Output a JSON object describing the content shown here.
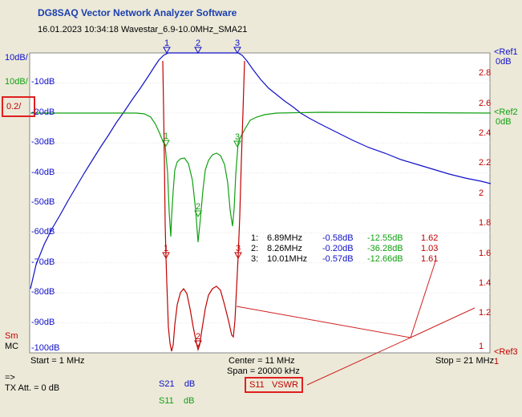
{
  "app_title": "DG8SAQ Vector Network Analyzer Software",
  "subtitle": "16.01.2023   10:34:18   Wavestar_6.9-10.0MHz_SMA21",
  "scales": {
    "blue_scale": "10dB/",
    "green_scale": "10dB/",
    "red_scale": "0.2/",
    "ref1": "<Ref1",
    "ref1_val": "0dB",
    "ref2": "<Ref2",
    "ref2_val": "0dB",
    "ref3": "<Ref3",
    "ref3_val": "1"
  },
  "left_db_ticks": [
    "-10dB",
    "-20dB",
    "-30dB",
    "-40dB",
    "-50dB",
    "-60dB",
    "-70dB",
    "-80dB",
    "-90dB",
    "-100dB"
  ],
  "right_vswr_ticks": [
    "2.8",
    "2.6",
    "2.4",
    "2.2",
    "2",
    "1.8",
    "1.6",
    "1.4",
    "1.2",
    "1"
  ],
  "markers": {
    "labels": [
      "1",
      "2",
      "3"
    ],
    "rows": [
      {
        "num": "1:",
        "freq": "6.89MHz",
        "s21": "-0.58dB",
        "s11": "-12.55dB",
        "vswr": "1.62"
      },
      {
        "num": "2:",
        "freq": "8.26MHz",
        "s21": "-0.20dB",
        "s11": "-36.28dB",
        "vswr": "1.03"
      },
      {
        "num": "3:",
        "freq": "10.01MHz",
        "s21": "-0.57dB",
        "s11": "-12.66dB",
        "vswr": "1.61"
      }
    ]
  },
  "side_labels": {
    "sm": "Sm",
    "mc": "MC"
  },
  "footer": {
    "start": "Start = 1 MHz",
    "center": "Center = 11 MHz",
    "span": "Span = 20000 kHz",
    "stop": "Stop = 21 MHz",
    "arrow": "=>",
    "tx_att": "TX Att.  = 0 dB"
  },
  "legend": [
    {
      "param": "S21",
      "unit": "dB",
      "color": "#1010c8"
    },
    {
      "param": "S11",
      "unit": "dB",
      "color": "#10a010"
    },
    {
      "param": "S11",
      "unit": "VSWR",
      "color": "#c00000"
    }
  ],
  "colors": {
    "s21": "#1010c8",
    "s11_db": "#10a010",
    "vswr": "#c00000",
    "highlight": "#e02020"
  }
}
